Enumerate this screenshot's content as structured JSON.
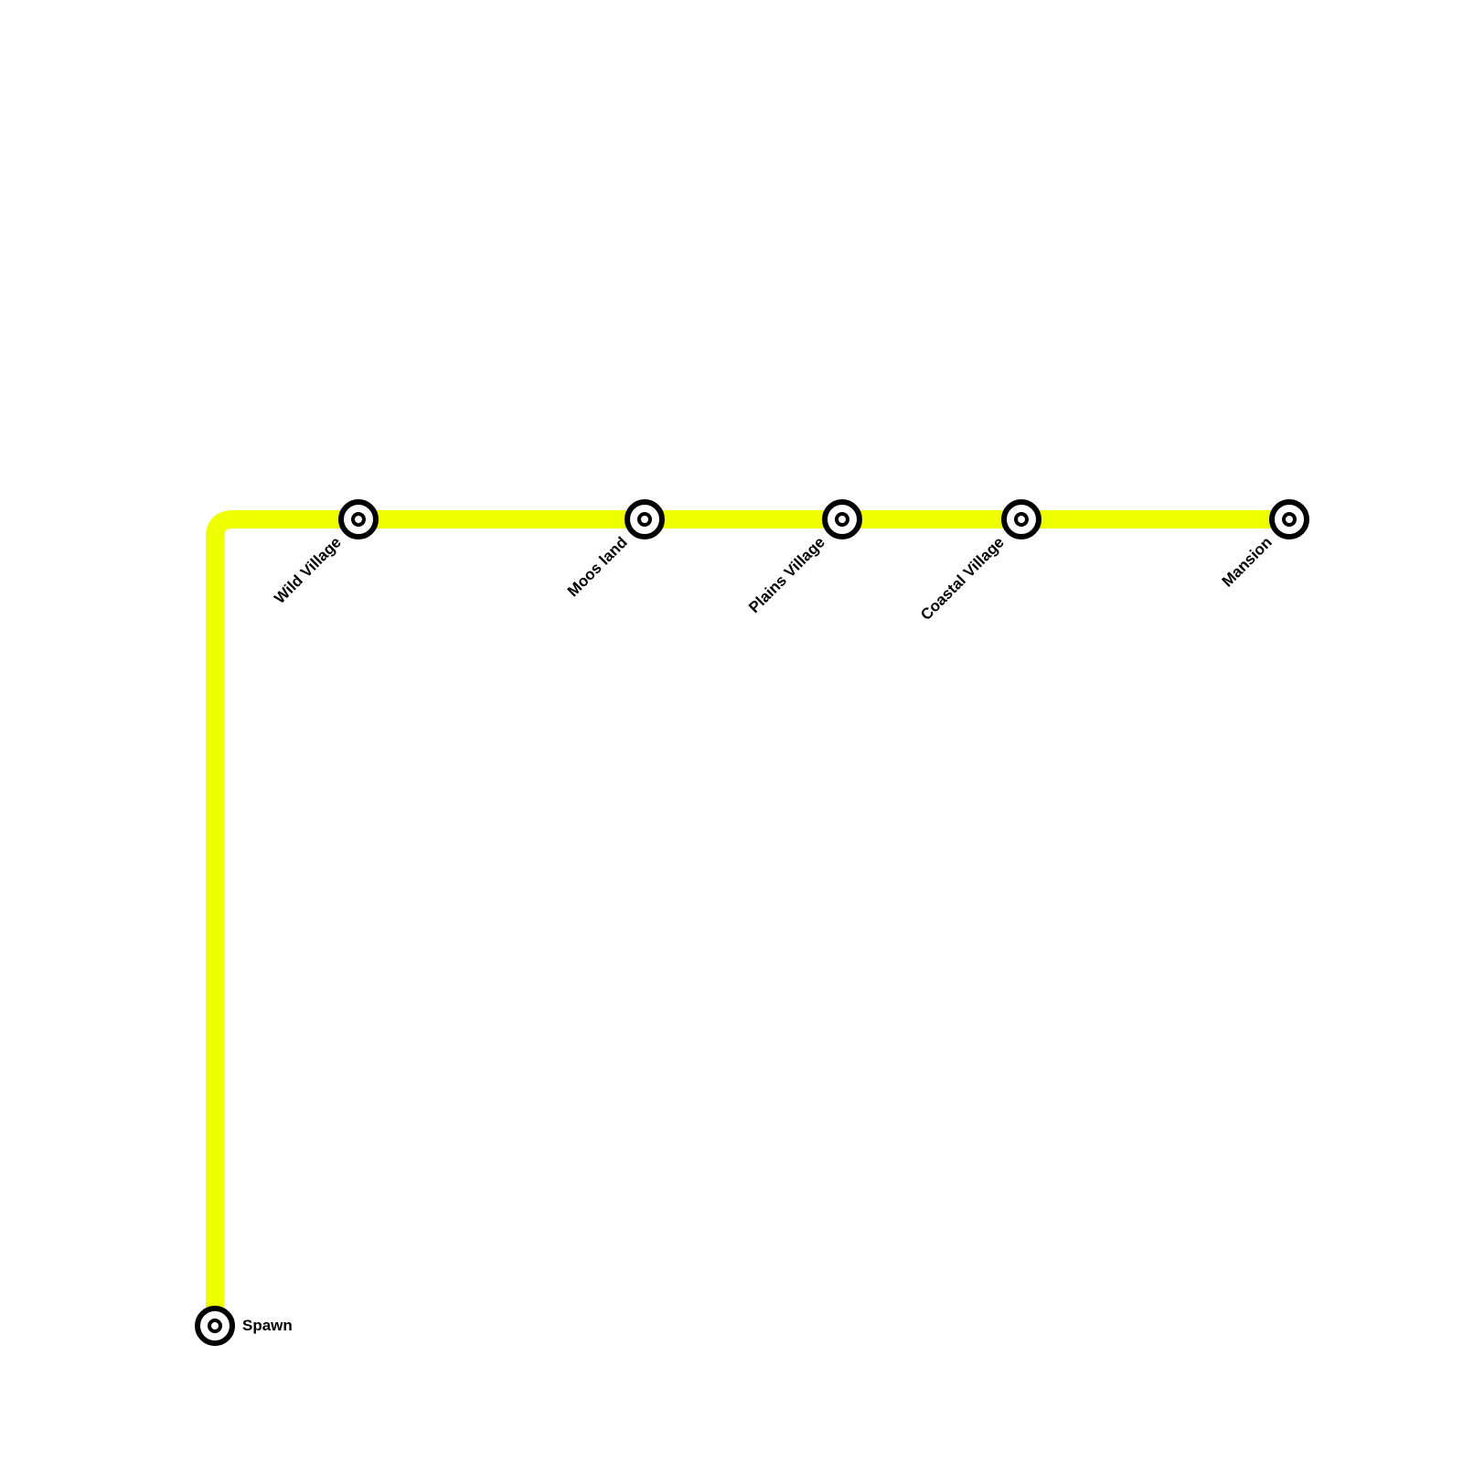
{
  "line": {
    "color": "#EEFF00"
  },
  "stations": [
    {
      "name": "Spawn",
      "label_side": "right"
    },
    {
      "name": "Wild Village",
      "label_side": "below-left-diagonal"
    },
    {
      "name": "Moos land",
      "label_side": "below-left-diagonal"
    },
    {
      "name": "Plains Village",
      "label_side": "below-left-diagonal"
    },
    {
      "name": "Coastal Village",
      "label_side": "below-left-diagonal"
    },
    {
      "name": "Mansion",
      "label_side": "below-left-diagonal"
    }
  ]
}
